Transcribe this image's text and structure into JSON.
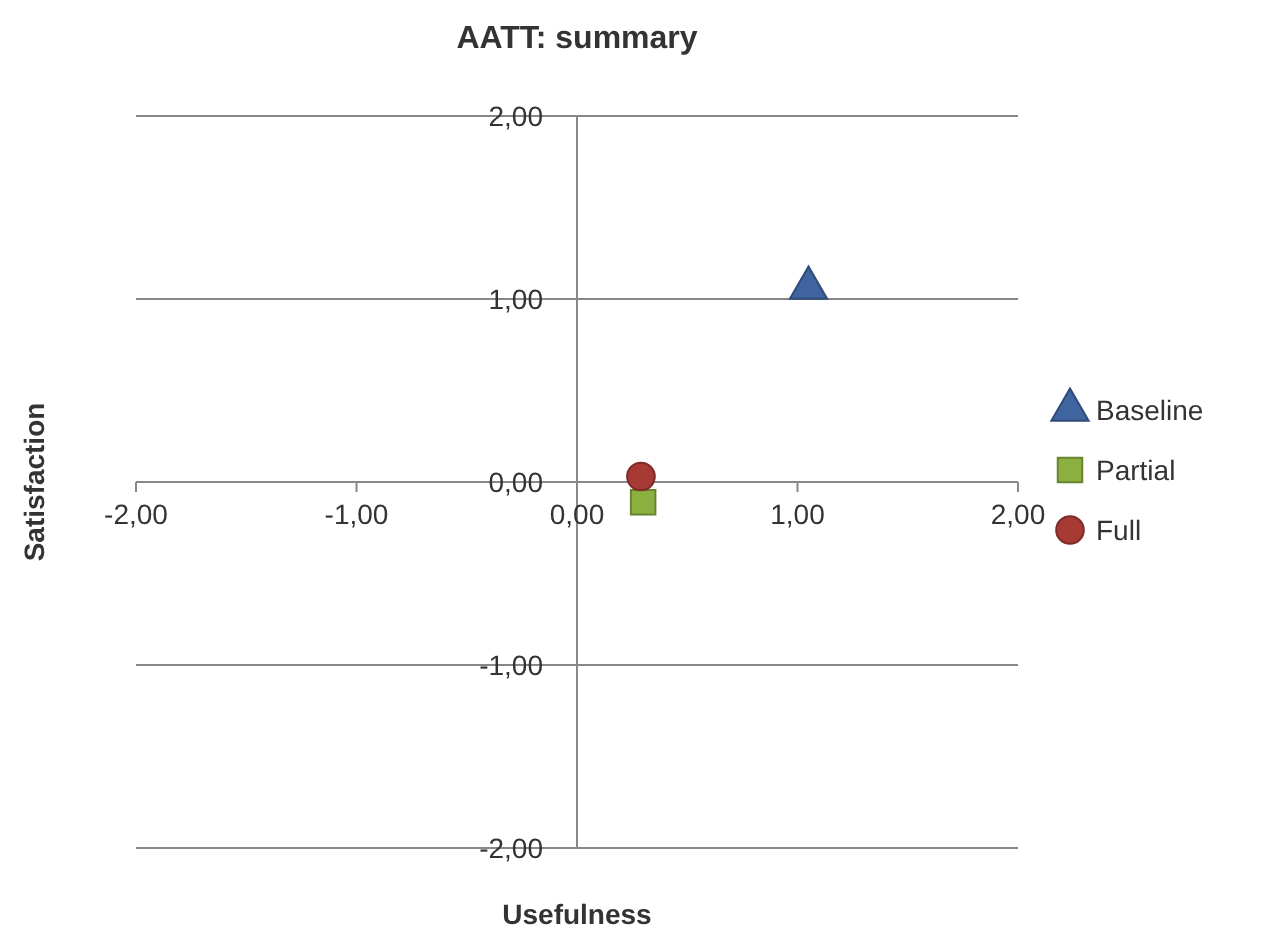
{
  "chart_data": {
    "type": "scatter",
    "title": "AATT: summary",
    "xlabel": "Usefulness",
    "ylabel": "Satisfaction",
    "xlim": [
      -2,
      2
    ],
    "ylim": [
      -2,
      2
    ],
    "xticks": [
      {
        "value": -2,
        "label": "-2,00"
      },
      {
        "value": -1,
        "label": "-1,00"
      },
      {
        "value": 0,
        "label": "0,00"
      },
      {
        "value": 1,
        "label": "1,00"
      },
      {
        "value": 2,
        "label": "2,00"
      }
    ],
    "yticks": [
      {
        "value": -2,
        "label": "-2,00"
      },
      {
        "value": -1,
        "label": "-1,00"
      },
      {
        "value": 0,
        "label": "0,00"
      },
      {
        "value": 1,
        "label": "1,00"
      },
      {
        "value": 2,
        "label": "2,00"
      }
    ],
    "grid": "y",
    "legend": "right",
    "series": [
      {
        "name": "Baseline",
        "color": "#3f64a0",
        "marker": "triangle",
        "x": [
          1.05
        ],
        "values": [
          1.06
        ]
      },
      {
        "name": "Partial",
        "color": "#8cb040",
        "marker": "square",
        "x": [
          0.3
        ],
        "values": [
          -0.11
        ]
      },
      {
        "name": "Full",
        "color": "#a83a36",
        "marker": "circle",
        "x": [
          0.29
        ],
        "values": [
          0.03
        ]
      }
    ]
  }
}
